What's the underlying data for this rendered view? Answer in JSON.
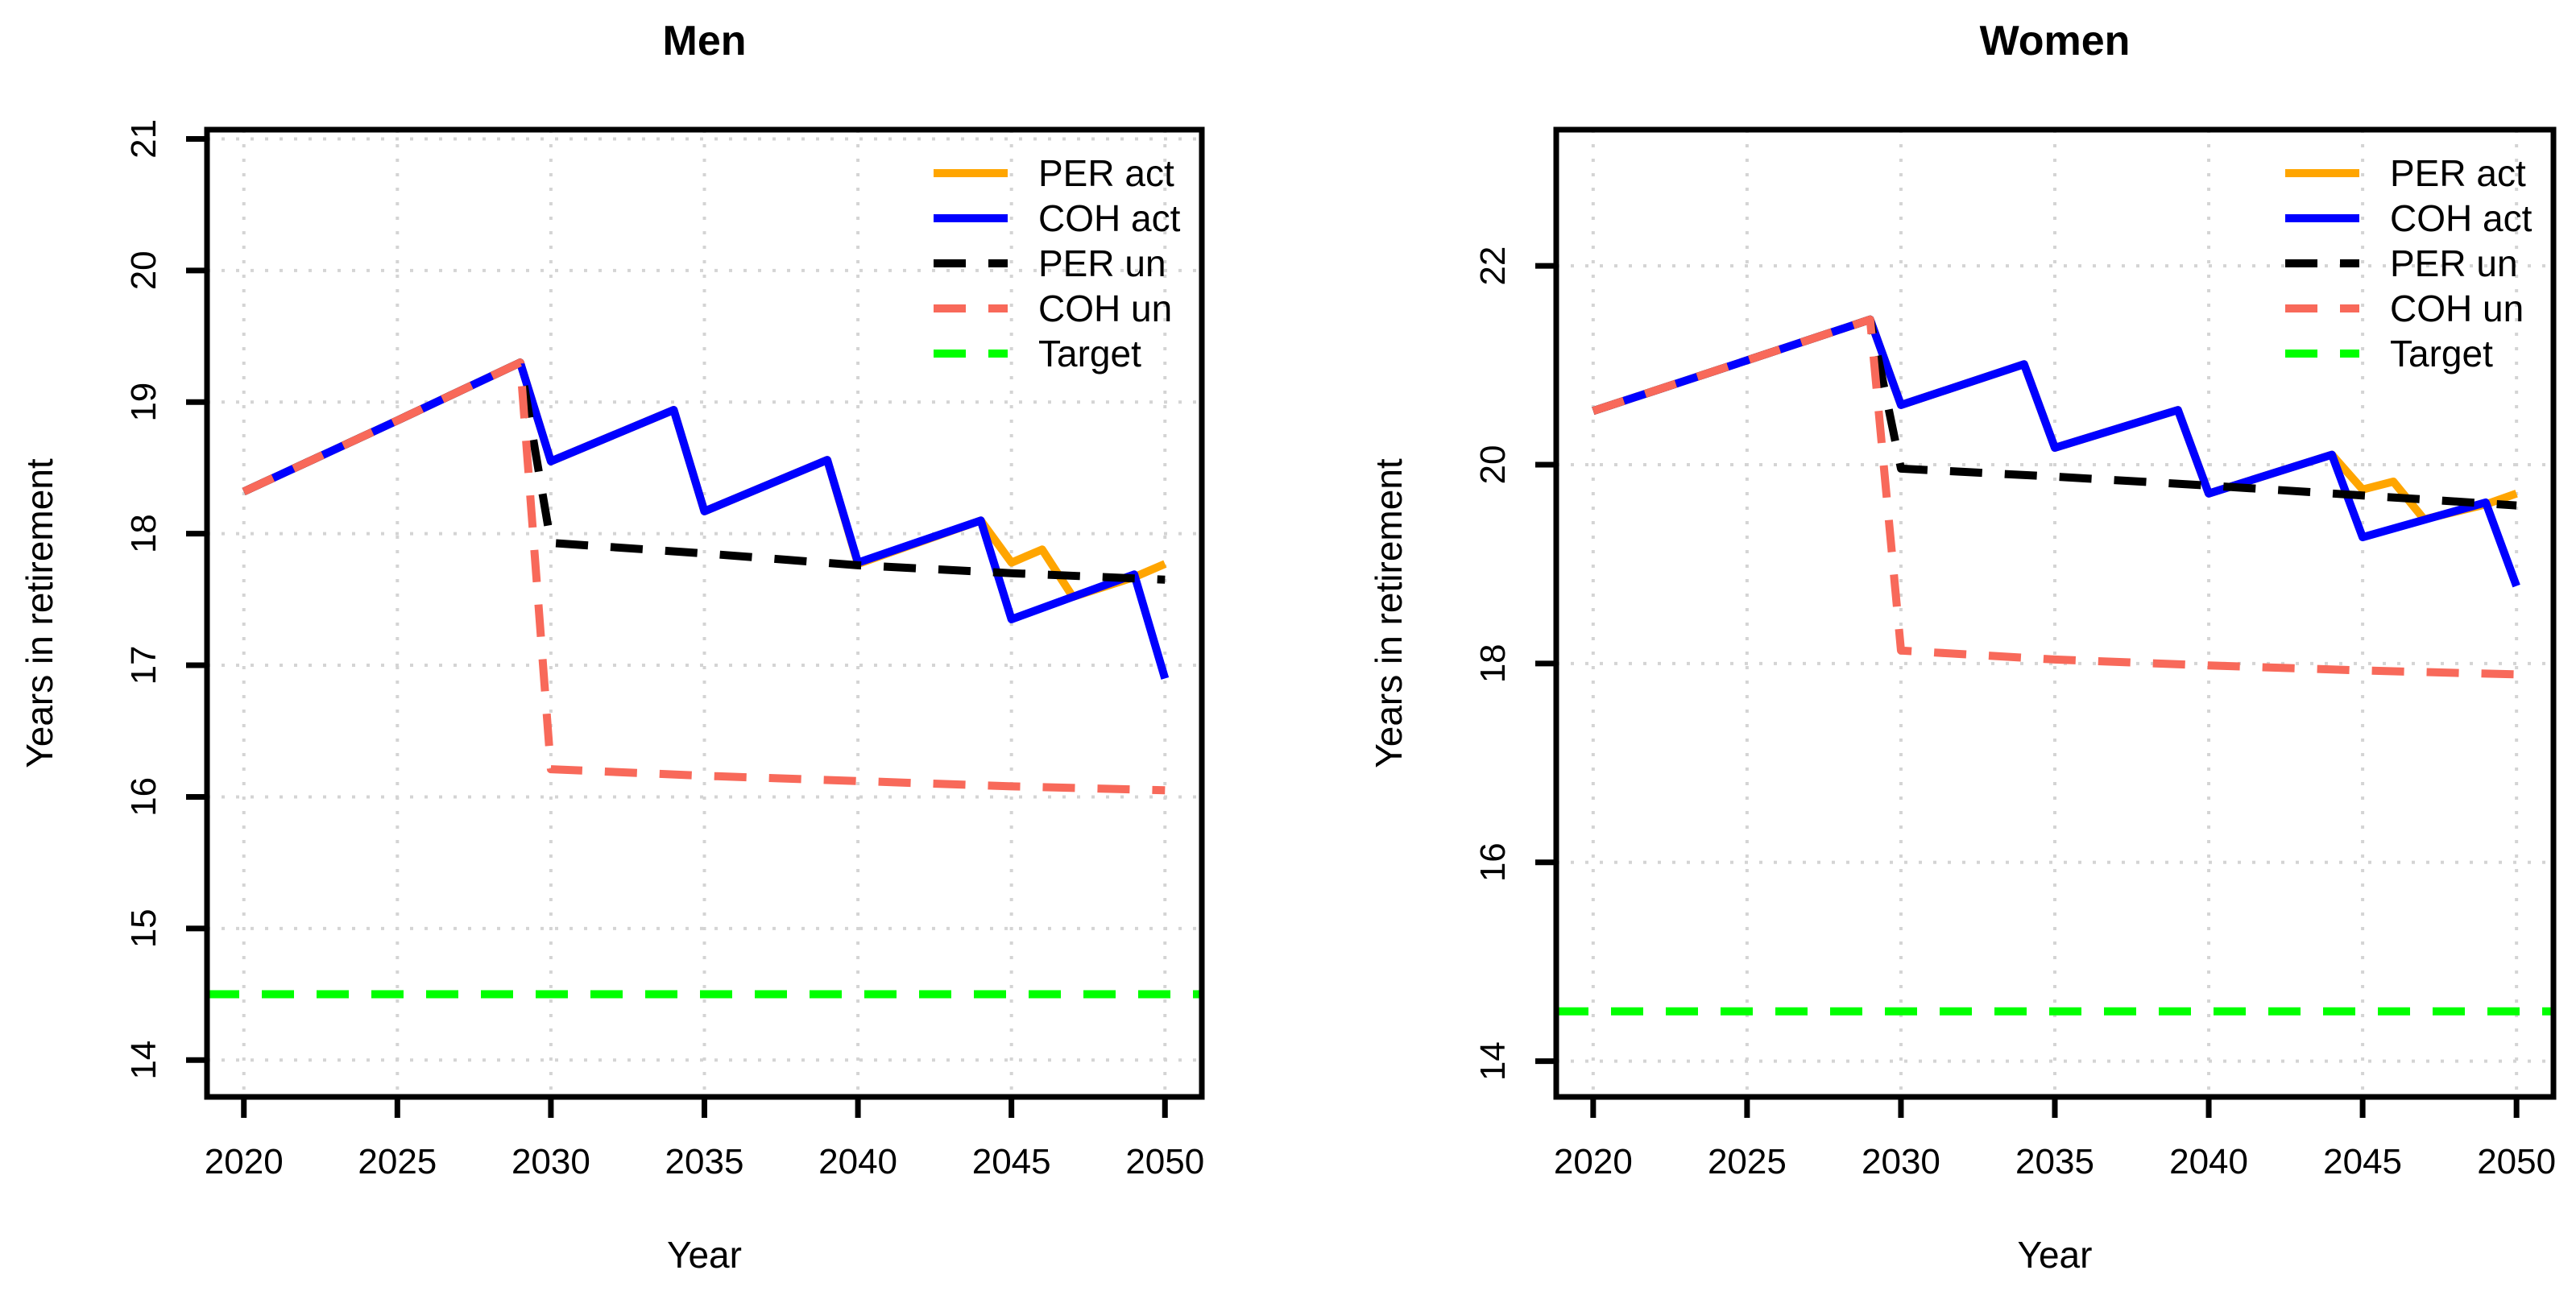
{
  "colors": {
    "per_act": "#FFA500",
    "coh_act": "#0000FF",
    "per_un": "#000000",
    "coh_un": "#F8695A",
    "target": "#00FF00",
    "grid": "#D4D4D4",
    "axis": "#000000",
    "background": "#FFFFFF"
  },
  "chart_data": [
    {
      "type": "line",
      "title": "Men",
      "xlabel": "Year",
      "ylabel": "Years in retirement",
      "xlim": [
        2018.8,
        2051.2
      ],
      "ylim": [
        13.72,
        21.07
      ],
      "xticks": [
        2020,
        2025,
        2030,
        2035,
        2040,
        2045,
        2050
      ],
      "yticks": [
        14,
        15,
        16,
        17,
        18,
        19,
        20,
        21
      ],
      "grid": "dotted",
      "legend_position": "top-right",
      "series": [
        {
          "name": "PER act",
          "color": "#FFA500",
          "style": "solid",
          "points": [
            [
              2020,
              18.32
            ],
            [
              2025,
              18.86
            ],
            [
              2029,
              19.3
            ],
            [
              2030,
              18.55
            ],
            [
              2034,
              18.94
            ],
            [
              2035,
              18.17
            ],
            [
              2039,
              18.56
            ],
            [
              2040,
              17.77
            ],
            [
              2044,
              18.1
            ],
            [
              2045,
              17.78
            ],
            [
              2046,
              17.88
            ],
            [
              2047,
              17.52
            ],
            [
              2049,
              17.67
            ],
            [
              2050,
              17.77
            ]
          ]
        },
        {
          "name": "COH act",
          "color": "#0000FF",
          "style": "solid",
          "points": [
            [
              2020,
              18.32
            ],
            [
              2025,
              18.86
            ],
            [
              2029,
              19.3
            ],
            [
              2030,
              18.55
            ],
            [
              2034,
              18.94
            ],
            [
              2035,
              18.17
            ],
            [
              2039,
              18.56
            ],
            [
              2040,
              17.78
            ],
            [
              2044,
              18.1
            ],
            [
              2045,
              17.35
            ],
            [
              2049,
              17.69
            ],
            [
              2050,
              16.9
            ]
          ]
        },
        {
          "name": "PER un",
          "color": "#000000",
          "style": "dashed",
          "points": [
            [
              2020,
              18.32
            ],
            [
              2025,
              18.86
            ],
            [
              2029,
              19.3
            ],
            [
              2030,
              17.93
            ],
            [
              2035,
              17.85
            ],
            [
              2040,
              17.76
            ],
            [
              2045,
              17.7
            ],
            [
              2050,
              17.65
            ]
          ]
        },
        {
          "name": "COH un",
          "color": "#F8695A",
          "style": "dashed",
          "points": [
            [
              2020,
              18.32
            ],
            [
              2025,
              18.86
            ],
            [
              2029,
              19.3
            ],
            [
              2030,
              16.21
            ],
            [
              2035,
              16.16
            ],
            [
              2040,
              16.12
            ],
            [
              2045,
              16.08
            ],
            [
              2050,
              16.05
            ]
          ]
        },
        {
          "name": "Target",
          "color": "#00FF00",
          "style": "dashed",
          "hline": true,
          "value": 14.5
        }
      ]
    },
    {
      "type": "line",
      "title": "Women",
      "xlabel": "Year",
      "ylabel": "Years in retirement",
      "xlim": [
        2018.8,
        2051.2
      ],
      "ylim": [
        13.64,
        23.37
      ],
      "xticks": [
        2020,
        2025,
        2030,
        2035,
        2040,
        2045,
        2050
      ],
      "yticks": [
        14,
        16,
        18,
        20,
        22
      ],
      "grid": "dotted",
      "legend_position": "top-right",
      "series": [
        {
          "name": "PER act",
          "color": "#FFA500",
          "style": "solid",
          "points": [
            [
              2020,
              20.54
            ],
            [
              2025,
              21.05
            ],
            [
              2029,
              21.46
            ],
            [
              2030,
              20.6
            ],
            [
              2034,
              21.01
            ],
            [
              2035,
              20.17
            ],
            [
              2039,
              20.55
            ],
            [
              2040,
              19.71
            ],
            [
              2044,
              20.1
            ],
            [
              2045,
              19.75
            ],
            [
              2046,
              19.83
            ],
            [
              2047,
              19.45
            ],
            [
              2049,
              19.6
            ],
            [
              2050,
              19.71
            ]
          ]
        },
        {
          "name": "COH act",
          "color": "#0000FF",
          "style": "solid",
          "points": [
            [
              2020,
              20.54
            ],
            [
              2025,
              21.05
            ],
            [
              2029,
              21.46
            ],
            [
              2030,
              20.6
            ],
            [
              2034,
              21.01
            ],
            [
              2035,
              20.17
            ],
            [
              2039,
              20.55
            ],
            [
              2040,
              19.71
            ],
            [
              2044,
              20.1
            ],
            [
              2045,
              19.27
            ],
            [
              2049,
              19.62
            ],
            [
              2050,
              18.78
            ]
          ]
        },
        {
          "name": "PER un",
          "color": "#000000",
          "style": "dashed",
          "points": [
            [
              2020,
              20.54
            ],
            [
              2025,
              21.05
            ],
            [
              2029,
              21.46
            ],
            [
              2030,
              19.96
            ],
            [
              2035,
              19.88
            ],
            [
              2040,
              19.79
            ],
            [
              2045,
              19.69
            ],
            [
              2050,
              19.59
            ]
          ]
        },
        {
          "name": "COH un",
          "color": "#F8695A",
          "style": "dashed",
          "points": [
            [
              2020,
              20.54
            ],
            [
              2025,
              21.05
            ],
            [
              2029,
              21.46
            ],
            [
              2030,
              18.13
            ],
            [
              2035,
              18.04
            ],
            [
              2040,
              17.98
            ],
            [
              2045,
              17.93
            ],
            [
              2050,
              17.89
            ]
          ]
        },
        {
          "name": "Target",
          "color": "#00FF00",
          "style": "dashed",
          "hline": true,
          "value": 14.5
        }
      ]
    }
  ]
}
